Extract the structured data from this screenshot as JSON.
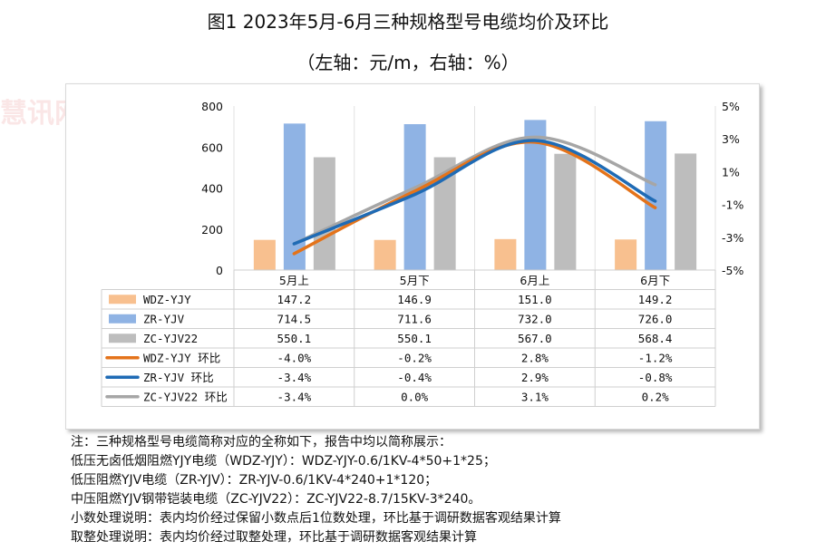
{
  "title": "图1 2023年5月-6月三种规格型号电缆均价及环比",
  "subtitle": "（左轴：元/m，右轴：%）",
  "chart_data": {
    "type": "bar",
    "categories": [
      "5月上",
      "5月下",
      "6月上",
      "6月下"
    ],
    "left_axis": {
      "min": 0,
      "max": 800,
      "ticks": [
        "0",
        "200",
        "400",
        "600",
        "800"
      ]
    },
    "right_axis": {
      "min": -5,
      "max": 5,
      "ticks": [
        "-5%",
        "-3%",
        "-1%",
        "1%",
        "3%",
        "5%"
      ]
    },
    "bar_series": [
      {
        "name": "WDZ-YJY",
        "color": "#f8c08f",
        "values": [
          147.2,
          146.9,
          151.0,
          149.2
        ],
        "labels": [
          "147.2",
          "146.9",
          "151.0",
          "149.2"
        ]
      },
      {
        "name": "ZR-YJV",
        "color": "#8fb3e4",
        "values": [
          714.5,
          711.6,
          732.0,
          726.0
        ],
        "labels": [
          "714.5",
          "711.6",
          "732.0",
          "726.0"
        ]
      },
      {
        "name": "ZC-YJV22",
        "color": "#bdbdbd",
        "values": [
          550.1,
          550.1,
          567.0,
          568.4
        ],
        "labels": [
          "550.1",
          "550.1",
          "567.0",
          "568.4"
        ]
      }
    ],
    "line_series": [
      {
        "name": "WDZ-YJY 环比",
        "color": "#e4731a",
        "values": [
          -4.0,
          -0.2,
          2.8,
          -1.2
        ],
        "labels": [
          "-4.0%",
          "-0.2%",
          "2.8%",
          "-1.2%"
        ]
      },
      {
        "name": "ZR-YJV 环比",
        "color": "#1f6bb5",
        "values": [
          -3.4,
          -0.4,
          2.9,
          -0.8
        ],
        "labels": [
          "-3.4%",
          "-0.4%",
          "2.9%",
          "-0.8%"
        ]
      },
      {
        "name": "ZC-YJV22 环比",
        "color": "#a6a6a6",
        "values": [
          -3.4,
          0.0,
          3.1,
          0.2
        ],
        "labels": [
          "-3.4%",
          "0.0%",
          "3.1%",
          "0.2%"
        ]
      }
    ]
  },
  "notes": [
    "注：三种规格型号电缆简称对应的全称如下，报告中均以简称展示：",
    "低压无卤低烟阻燃YJY电缆（WDZ-YJY）：WDZ-YJY-0.6/1KV-4*50+1*25；",
    "低压阻燃YJV电缆（ZR-YJV）：ZR-YJV-0.6/1KV-4*240+1*120；",
    "中压阻燃YJV钢带铠装电缆（ZC-YJV22）：ZC-YJV22-8.7/15KV-3*240。",
    "小数处理说明：表内均价经过保留小数点后1位数处理，环比基于调研数据客观结果计算",
    "取整处理说明：表内均价经过取整处理，环比基于调研数据客观结果计算"
  ],
  "watermark": "慧讯网"
}
